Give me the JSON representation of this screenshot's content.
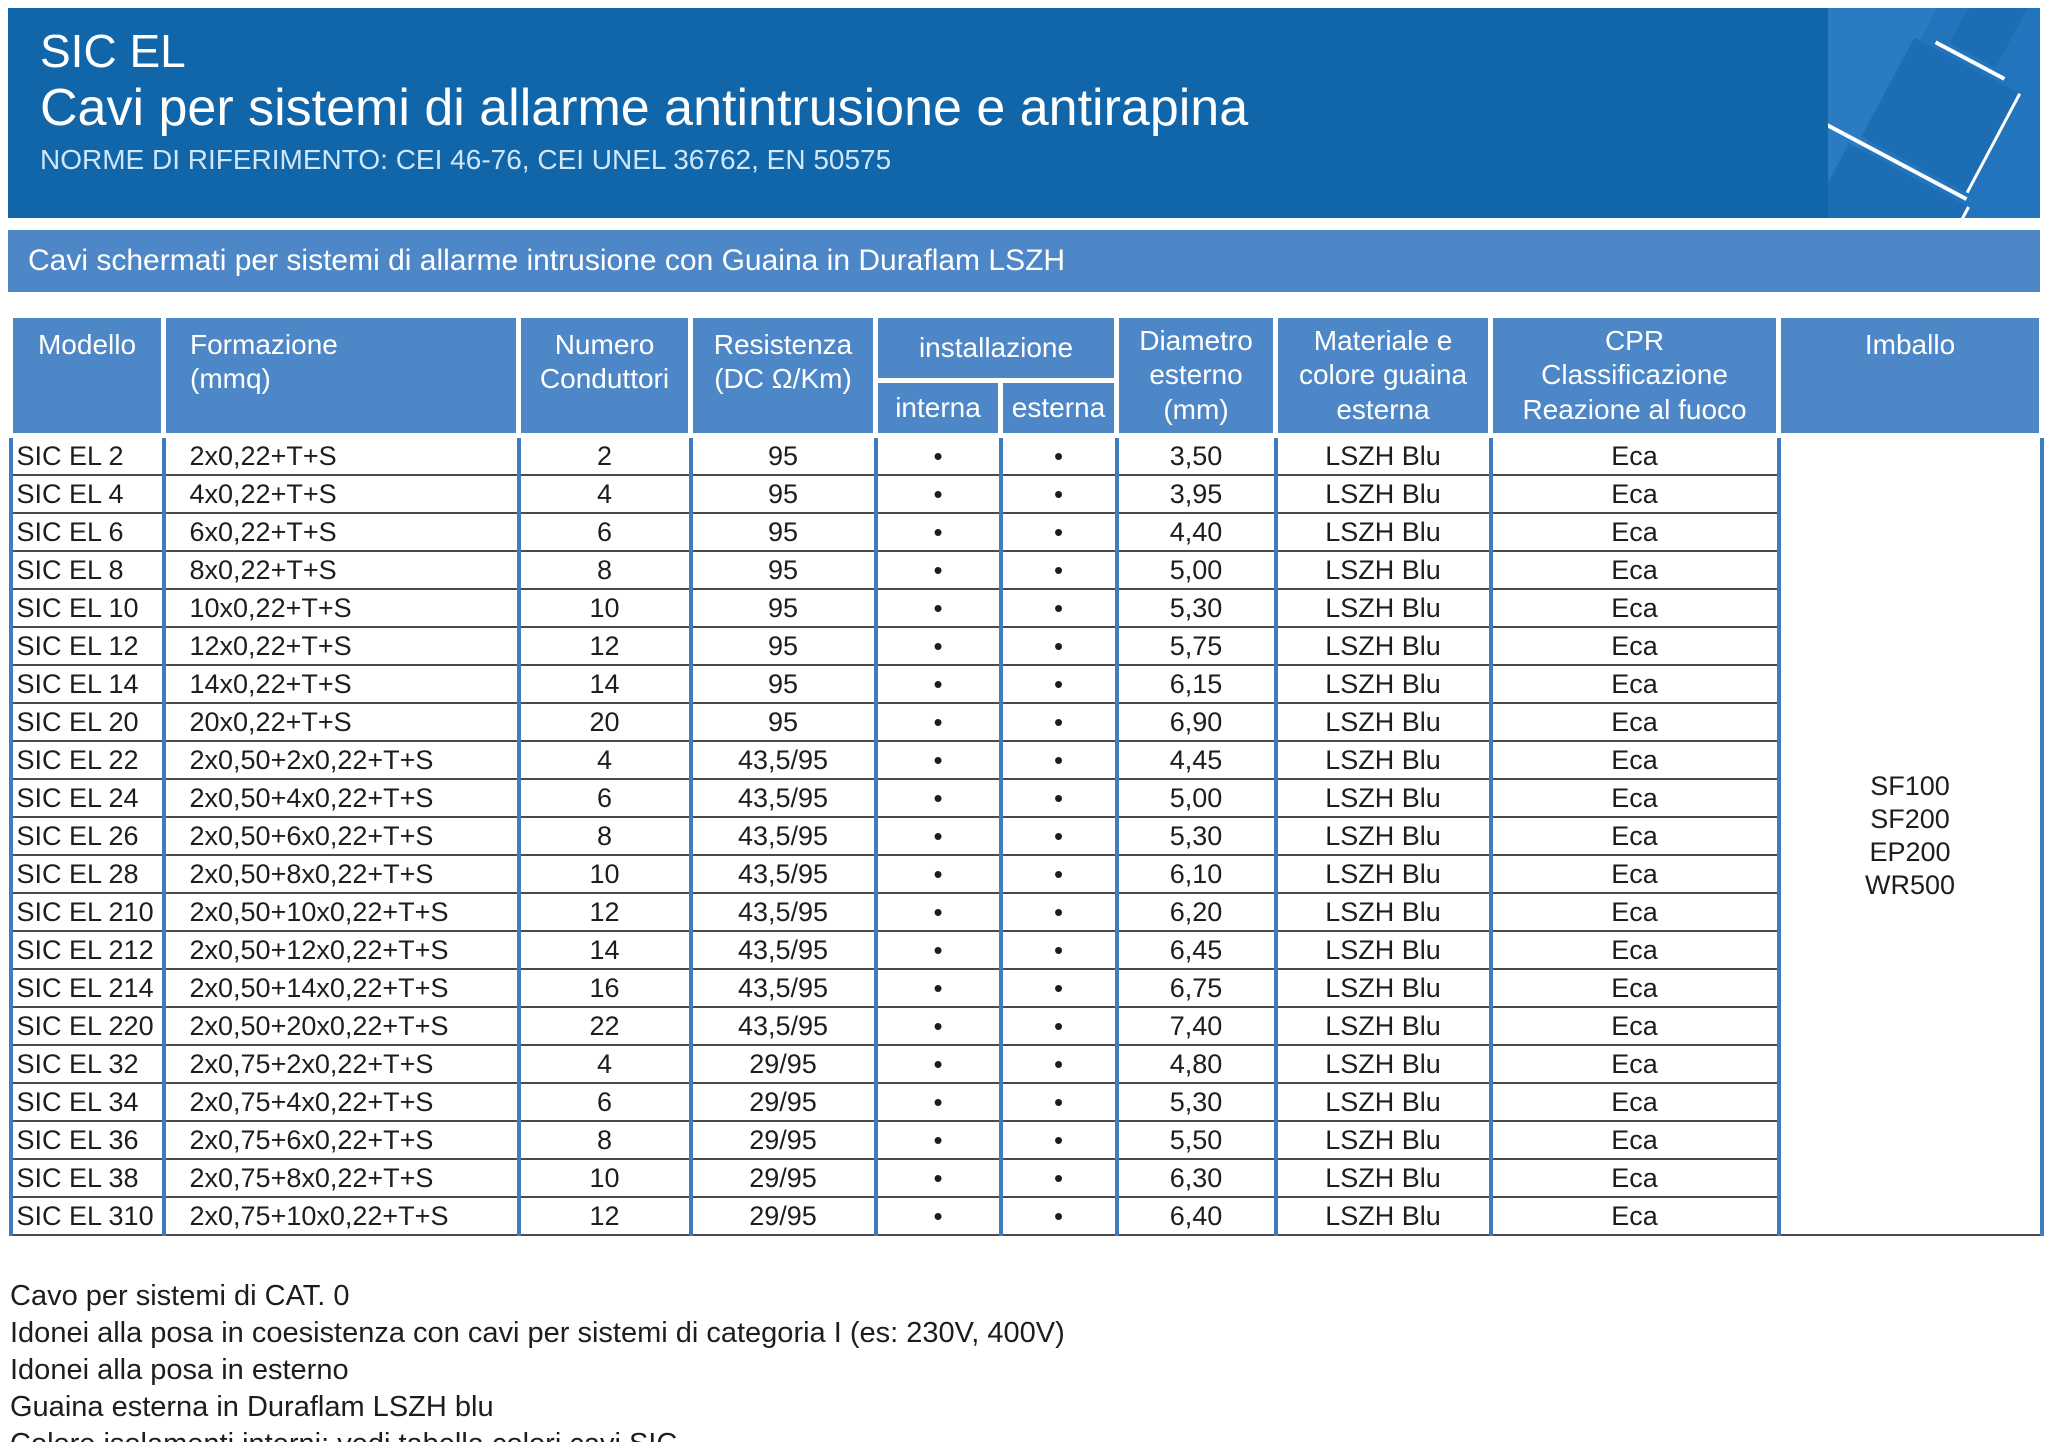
{
  "header": {
    "title": "SIC EL",
    "subtitle": "Cavi per sistemi di allarme antintrusione e antirapina",
    "norms": "NORME DI RIFERIMENTO: CEI 46-76, CEI UNEL 36762, EN 50575"
  },
  "banner": {
    "text": "Cavi schermati per sistemi di allarme intrusione con Guaina in Duraflam LSZH"
  },
  "table": {
    "columns": {
      "modello": "Modello",
      "formazione": "Formazione\n(mmq)",
      "conduttori": "Numero\nConduttori",
      "resistenza": "Resistenza\n(DC Ω/Km)",
      "installazione": "installazione",
      "interna": "interna",
      "esterna": "esterna",
      "diametro": "Diametro\nesterno\n(mm)",
      "materiale": "Materiale e\ncolore guaina\nesterna",
      "cpr": "CPR\nClassificazione\nReazione al fuoco",
      "imballo": "Imballo"
    },
    "rows": [
      [
        "SIC EL 2",
        "2x0,22+T+S",
        "2",
        "95",
        "•",
        "•",
        "3,50",
        "LSZH Blu",
        "Eca"
      ],
      [
        "SIC EL 4",
        "4x0,22+T+S",
        "4",
        "95",
        "•",
        "•",
        "3,95",
        "LSZH Blu",
        "Eca"
      ],
      [
        "SIC EL 6",
        "6x0,22+T+S",
        "6",
        "95",
        "•",
        "•",
        "4,40",
        "LSZH Blu",
        "Eca"
      ],
      [
        "SIC EL 8",
        "8x0,22+T+S",
        "8",
        "95",
        "•",
        "•",
        "5,00",
        "LSZH Blu",
        "Eca"
      ],
      [
        "SIC EL 10",
        "10x0,22+T+S",
        "10",
        "95",
        "•",
        "•",
        "5,30",
        "LSZH Blu",
        "Eca"
      ],
      [
        "SIC EL 12",
        "12x0,22+T+S",
        "12",
        "95",
        "•",
        "•",
        "5,75",
        "LSZH Blu",
        "Eca"
      ],
      [
        "SIC EL 14",
        "14x0,22+T+S",
        "14",
        "95",
        "•",
        "•",
        "6,15",
        "LSZH Blu",
        "Eca"
      ],
      [
        "SIC EL 20",
        "20x0,22+T+S",
        "20",
        "95",
        "•",
        "•",
        "6,90",
        "LSZH Blu",
        "Eca"
      ],
      [
        "SIC EL 22",
        "2x0,50+2x0,22+T+S",
        "4",
        "43,5/95",
        "•",
        "•",
        "4,45",
        "LSZH Blu",
        "Eca"
      ],
      [
        "SIC EL 24",
        "2x0,50+4x0,22+T+S",
        "6",
        "43,5/95",
        "•",
        "•",
        "5,00",
        "LSZH Blu",
        "Eca"
      ],
      [
        "SIC EL 26",
        "2x0,50+6x0,22+T+S",
        "8",
        "43,5/95",
        "•",
        "•",
        "5,30",
        "LSZH Blu",
        "Eca"
      ],
      [
        "SIC EL 28",
        "2x0,50+8x0,22+T+S",
        "10",
        "43,5/95",
        "•",
        "•",
        "6,10",
        "LSZH Blu",
        "Eca"
      ],
      [
        "SIC EL 210",
        "2x0,50+10x0,22+T+S",
        "12",
        "43,5/95",
        "•",
        "•",
        "6,20",
        "LSZH Blu",
        "Eca"
      ],
      [
        "SIC EL 212",
        "2x0,50+12x0,22+T+S",
        "14",
        "43,5/95",
        "•",
        "•",
        "6,45",
        "LSZH Blu",
        "Eca"
      ],
      [
        "SIC EL 214",
        "2x0,50+14x0,22+T+S",
        "16",
        "43,5/95",
        "•",
        "•",
        "6,75",
        "LSZH Blu",
        "Eca"
      ],
      [
        "SIC EL 220",
        "2x0,50+20x0,22+T+S",
        "22",
        "43,5/95",
        "•",
        "•",
        "7,40",
        "LSZH Blu",
        "Eca"
      ],
      [
        "SIC EL 32",
        "2x0,75+2x0,22+T+S",
        "4",
        "29/95",
        "•",
        "•",
        "4,80",
        "LSZH Blu",
        "Eca"
      ],
      [
        "SIC EL 34",
        "2x0,75+4x0,22+T+S",
        "6",
        "29/95",
        "•",
        "•",
        "5,30",
        "LSZH Blu",
        "Eca"
      ],
      [
        "SIC EL 36",
        "2x0,75+6x0,22+T+S",
        "8",
        "29/95",
        "•",
        "•",
        "5,50",
        "LSZH Blu",
        "Eca"
      ],
      [
        "SIC EL 38",
        "2x0,75+8x0,22+T+S",
        "10",
        "29/95",
        "•",
        "•",
        "6,30",
        "LSZH Blu",
        "Eca"
      ],
      [
        "SIC EL 310",
        "2x0,75+10x0,22+T+S",
        "12",
        "29/95",
        "•",
        "•",
        "6,40",
        "LSZH Blu",
        "Eca"
      ]
    ],
    "imballo_lines": [
      "SF100",
      "SF200",
      "EP200",
      "WR500"
    ]
  },
  "notes": [
    "Cavo per sistemi di CAT. 0",
    "Idonei alla posa in coesistenza con cavi per sistemi di categoria I (es: 230V, 400V)",
    "Idonei alla posa in esterno",
    "Guaina esterna in Duraflam LSZH blu",
    "Colore isolamenti interni: vedi tabella colori cavi SIC"
  ],
  "colors": {
    "header_bg": "#1165A9",
    "banner_bg": "#4D87C7",
    "table_header_bg": "#4D87C7",
    "column_border": "#3C7CC1",
    "row_border": "#4a4a4a",
    "art_square_bg": "#2274BC"
  }
}
